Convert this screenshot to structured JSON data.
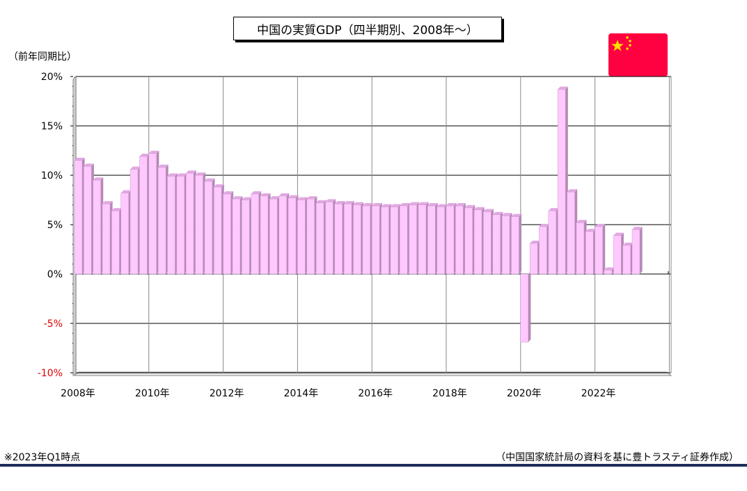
{
  "title": "中国の実質GDP（四半期別、2008年～）",
  "unit_label": "（前年同期比）",
  "footnote_left": "※2023年Q1時点",
  "footnote_right": "（中国国家統計局の資料を基に豊トラスティ証券作成）",
  "colors": {
    "bar_front": "#ffc8ff",
    "bar_side": "#b58ab5",
    "bar_top": "#e2a8e2",
    "negative_tick": "#e00000",
    "flag_red": "#ff0040",
    "flag_star": "#ffe000",
    "rule": "#1f2d5a"
  },
  "flag_icon": "china-flag-icon",
  "chart_data": {
    "type": "bar",
    "title": "中国の実質GDP（四半期別、2008年～）",
    "ylabel": "（前年同期比）",
    "xlabel": "",
    "ylim": [
      -10,
      20
    ],
    "yticks": [
      {
        "value": 20,
        "label": "20%"
      },
      {
        "value": 15,
        "label": "15%"
      },
      {
        "value": 10,
        "label": "10%"
      },
      {
        "value": 5,
        "label": "5%"
      },
      {
        "value": 0,
        "label": "0%"
      },
      {
        "value": -5,
        "label": "-5%"
      },
      {
        "value": -10,
        "label": "-10%"
      }
    ],
    "xticks": [
      "2008年",
      "2010年",
      "2012年",
      "2014年",
      "2016年",
      "2018年",
      "2020年",
      "2022年"
    ],
    "grid": true,
    "start": "2008 Q1",
    "frequency": "quarterly",
    "values": [
      11.5,
      10.9,
      9.5,
      7.1,
      6.4,
      8.2,
      10.6,
      11.9,
      12.2,
      10.8,
      9.9,
      9.9,
      10.2,
      10.0,
      9.4,
      8.8,
      8.1,
      7.6,
      7.5,
      8.1,
      7.9,
      7.6,
      7.9,
      7.7,
      7.5,
      7.6,
      7.2,
      7.3,
      7.1,
      7.1,
      7.0,
      6.9,
      6.9,
      6.8,
      6.8,
      6.9,
      7.0,
      7.0,
      6.9,
      6.8,
      6.9,
      6.9,
      6.7,
      6.5,
      6.3,
      6.0,
      5.9,
      5.8,
      -6.9,
      3.1,
      4.8,
      6.4,
      18.7,
      8.3,
      5.2,
      4.3,
      4.8,
      0.4,
      3.9,
      2.9,
      4.5
    ]
  }
}
